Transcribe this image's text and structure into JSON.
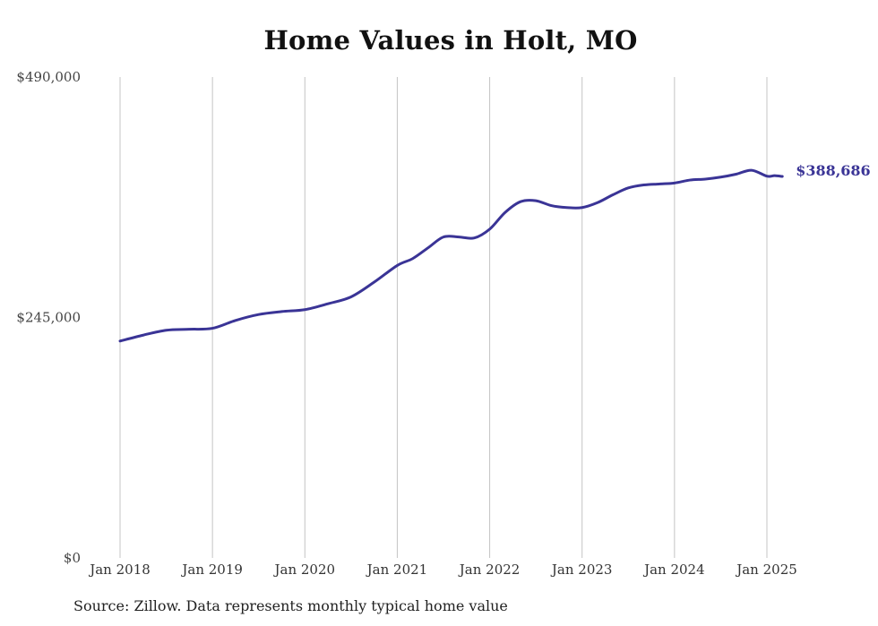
{
  "chart_data": {
    "type": "line",
    "title": "Home Values in Holt, MO",
    "source_note": "Source: Zillow. Data represents monthly typical home value",
    "xlabel": "",
    "ylabel": "",
    "ylim": [
      0,
      490000
    ],
    "y_ticks": [
      {
        "value": 0,
        "label": "$0"
      },
      {
        "value": 245000,
        "label": "$245,000"
      },
      {
        "value": 490000,
        "label": "$490,000"
      }
    ],
    "x_ticks": [
      {
        "value": "2018-01",
        "label": "Jan 2018"
      },
      {
        "value": "2019-01",
        "label": "Jan 2019"
      },
      {
        "value": "2020-01",
        "label": "Jan 2020"
      },
      {
        "value": "2021-01",
        "label": "Jan 2021"
      },
      {
        "value": "2022-01",
        "label": "Jan 2022"
      },
      {
        "value": "2023-01",
        "label": "Jan 2023"
      },
      {
        "value": "2024-01",
        "label": "Jan 2024"
      },
      {
        "value": "2025-01",
        "label": "Jan 2025"
      }
    ],
    "grid": "vertical",
    "legend": "none",
    "line_color": "#3a3496",
    "end_label": "$388,686",
    "series": [
      {
        "x": [
          "2018-01",
          "2018-04",
          "2018-07",
          "2018-10",
          "2019-01",
          "2019-04",
          "2019-07",
          "2019-10",
          "2020-01",
          "2020-04",
          "2020-07",
          "2020-10",
          "2021-01",
          "2021-03",
          "2021-05",
          "2021-07",
          "2021-09",
          "2021-11",
          "2022-01",
          "2022-03",
          "2022-05",
          "2022-07",
          "2022-09",
          "2022-11",
          "2023-01",
          "2023-03",
          "2023-05",
          "2023-07",
          "2023-09",
          "2023-11",
          "2024-01",
          "2024-03",
          "2024-05",
          "2024-07",
          "2024-09",
          "2024-11",
          "2025-01",
          "2025-02",
          "2025-03"
        ],
        "values": [
          221000,
          227000,
          232000,
          233000,
          234000,
          242000,
          248000,
          251000,
          253000,
          259000,
          266000,
          281000,
          298000,
          305000,
          316000,
          327000,
          327000,
          326000,
          335000,
          352000,
          363000,
          364000,
          359000,
          357000,
          357000,
          362000,
          370000,
          377000,
          380000,
          381000,
          382000,
          385000,
          386000,
          388000,
          391000,
          395000,
          389000,
          389500,
          388686
        ]
      }
    ]
  }
}
